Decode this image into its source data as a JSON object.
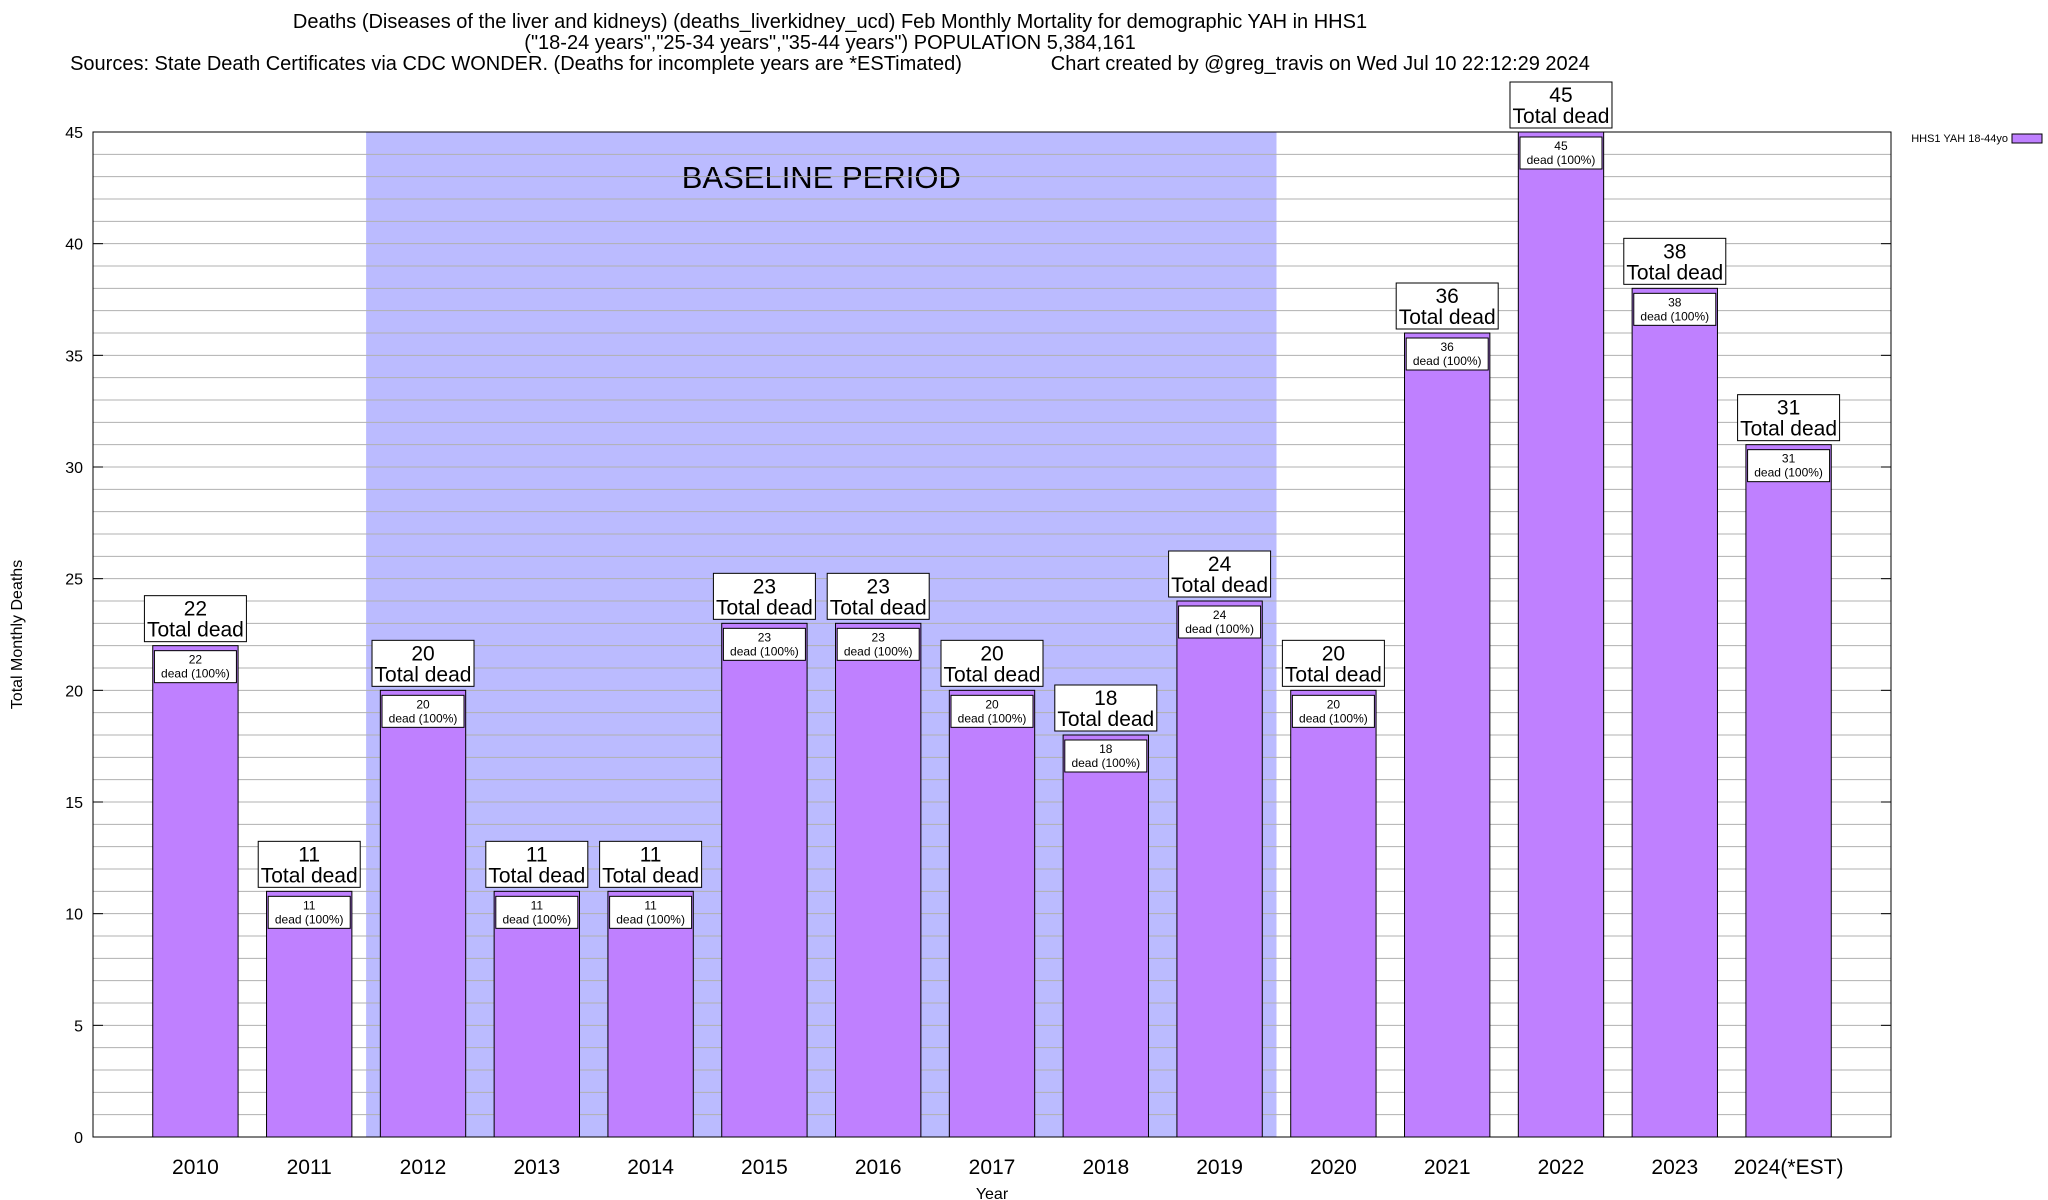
{
  "title": {
    "line1": "Deaths (Diseases of the liver and kidneys) (deaths_liverkidney_ucd) Feb Monthly Mortality for demographic YAH in HHS1",
    "line2": "(\"18-24 years\",\"25-34 years\",\"35-44 years\") POPULATION 5,384,161",
    "line3": "Sources: State Death Certificates via CDC WONDER. (Deaths for incomplete years are *ESTimated)                Chart created by @greg_travis on Wed Jul 10 22:12:29 2024"
  },
  "chart_data": {
    "type": "bar",
    "xlabel": "Year",
    "ylabel": "Total Monthly Deaths",
    "ylim": [
      0,
      45
    ],
    "yticks": [
      0,
      5,
      10,
      15,
      20,
      25,
      30,
      35,
      40,
      45
    ],
    "ytick_labels": [
      "0",
      "5",
      "10",
      "15",
      "20",
      "25",
      "30",
      "35",
      "40",
      "45"
    ],
    "minor_grid_step": 1,
    "grid": true,
    "categories": [
      "2010",
      "2011",
      "2012",
      "2013",
      "2014",
      "2015",
      "2016",
      "2017",
      "2018",
      "2019",
      "2020",
      "2021",
      "2022",
      "2023",
      "2024(*EST)"
    ],
    "series": [
      {
        "name": "HHS1 YAH 18-44yo",
        "color": "#bf80ff",
        "values": [
          22,
          11,
          20,
          11,
          11,
          23,
          23,
          20,
          18,
          24,
          20,
          36,
          45,
          38,
          31
        ]
      }
    ],
    "top_labels": [
      {
        "value": "22",
        "text": "Total dead"
      },
      {
        "value": "11",
        "text": "Total dead"
      },
      {
        "value": "20",
        "text": "Total dead"
      },
      {
        "value": "11",
        "text": "Total dead"
      },
      {
        "value": "11",
        "text": "Total dead"
      },
      {
        "value": "23",
        "text": "Total dead"
      },
      {
        "value": "23",
        "text": "Total dead"
      },
      {
        "value": "20",
        "text": "Total dead"
      },
      {
        "value": "18",
        "text": "Total dead"
      },
      {
        "value": "24",
        "text": "Total dead"
      },
      {
        "value": "20",
        "text": "Total dead"
      },
      {
        "value": "36",
        "text": "Total dead"
      },
      {
        "value": "45",
        "text": "Total dead"
      },
      {
        "value": "38",
        "text": "Total dead"
      },
      {
        "value": "31",
        "text": "Total dead"
      }
    ],
    "inner_labels": [
      {
        "value": "22",
        "text": "dead (100%)"
      },
      {
        "value": "11",
        "text": "dead (100%)"
      },
      {
        "value": "20",
        "text": "dead (100%)"
      },
      {
        "value": "11",
        "text": "dead (100%)"
      },
      {
        "value": "11",
        "text": "dead (100%)"
      },
      {
        "value": "23",
        "text": "dead (100%)"
      },
      {
        "value": "23",
        "text": "dead (100%)"
      },
      {
        "value": "20",
        "text": "dead (100%)"
      },
      {
        "value": "18",
        "text": "dead (100%)"
      },
      {
        "value": "24",
        "text": "dead (100%)"
      },
      {
        "value": "20",
        "text": "dead (100%)"
      },
      {
        "value": "36",
        "text": "dead (100%)"
      },
      {
        "value": "45",
        "text": "dead (100%)"
      },
      {
        "value": "38",
        "text": "dead (100%)"
      },
      {
        "value": "31",
        "text": "dead (100%)"
      }
    ],
    "baseline": {
      "label": "BASELINE PERIOD",
      "from": "2012",
      "to": "2019",
      "color": "#bbbbff"
    },
    "legend": {
      "position": "top-right",
      "entry": "HHS1 YAH 18-44yo",
      "color": "#bf80ff"
    }
  }
}
